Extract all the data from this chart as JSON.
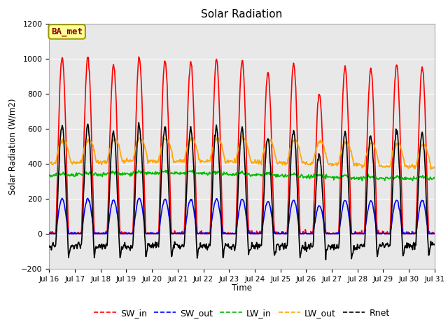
{
  "title": "Solar Radiation",
  "ylabel": "Solar Radiation (W/m2)",
  "xlabel": "Time",
  "ylim": [
    -200,
    1200
  ],
  "yticks": [
    -200,
    0,
    200,
    400,
    600,
    800,
    1000,
    1200
  ],
  "fig_bg_color": "#ffffff",
  "plot_bg_color": "#e8e8e8",
  "annotation": "BA_met",
  "legend_entries": [
    "SW_in",
    "SW_out",
    "LW_in",
    "LW_out",
    "Rnet"
  ],
  "colors": {
    "SW_in": "#ff0000",
    "SW_out": "#0000ff",
    "LW_in": "#00bb00",
    "LW_out": "#ffa500",
    "Rnet": "#000000"
  },
  "linewidths": {
    "SW_in": 1.2,
    "SW_out": 1.2,
    "LW_in": 1.2,
    "LW_out": 1.2,
    "Rnet": 1.2
  },
  "x_tick_labels": [
    "Jul 16",
    "Jul 17",
    "Jul 18",
    "Jul 19",
    "Jul 20",
    "Jul 21",
    "Jul 22",
    "Jul 23",
    "Jul 24",
    "Jul 25",
    "Jul 26",
    "Jul 27",
    "Jul 28",
    "Jul 29",
    "Jul 30",
    "Jul 31"
  ],
  "n_days": 15,
  "pts_per_day": 48
}
